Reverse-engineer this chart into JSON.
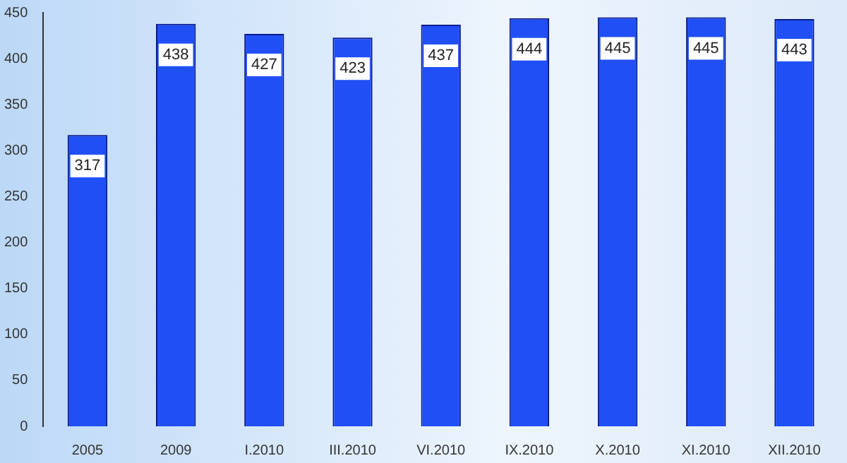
{
  "chart_data": {
    "type": "bar",
    "categories": [
      "2005",
      "2009",
      "I.2010",
      "III.2010",
      "VI.2010",
      "IX.2010",
      "X.2010",
      "XI.2010",
      "XII.2010"
    ],
    "values": [
      317,
      438,
      427,
      423,
      437,
      444,
      445,
      445,
      443
    ],
    "color": "#1f4ff5",
    "ylim": [
      0,
      450
    ],
    "yticks": [
      0,
      50,
      100,
      150,
      200,
      250,
      300,
      350,
      400,
      450
    ],
    "grid": false,
    "data_labels": true
  }
}
